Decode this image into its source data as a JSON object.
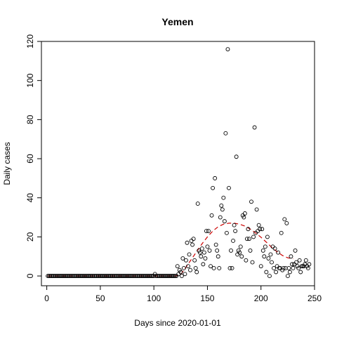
{
  "chart_data": {
    "type": "scatter",
    "title": "Yemen",
    "xlabel": "Days since 2020-01-01",
    "ylabel": "Daily cases",
    "xlim": [
      -5,
      250
    ],
    "ylim": [
      -5,
      120
    ],
    "x_ticks": [
      0,
      50,
      100,
      150,
      200,
      250
    ],
    "y_ticks": [
      0,
      20,
      40,
      60,
      80,
      100,
      120
    ],
    "grid": false,
    "point_color": "#000000",
    "trend_color": "#cc0000",
    "points": [
      [
        1,
        0
      ],
      [
        2,
        0
      ],
      [
        3,
        0
      ],
      [
        4,
        0
      ],
      [
        5,
        0
      ],
      [
        6,
        0
      ],
      [
        7,
        0
      ],
      [
        8,
        0
      ],
      [
        9,
        0
      ],
      [
        10,
        0
      ],
      [
        11,
        0
      ],
      [
        12,
        0
      ],
      [
        13,
        0
      ],
      [
        14,
        0
      ],
      [
        15,
        0
      ],
      [
        16,
        0
      ],
      [
        17,
        0
      ],
      [
        18,
        0
      ],
      [
        19,
        0
      ],
      [
        20,
        0
      ],
      [
        21,
        0
      ],
      [
        22,
        0
      ],
      [
        23,
        0
      ],
      [
        24,
        0
      ],
      [
        25,
        0
      ],
      [
        26,
        0
      ],
      [
        27,
        0
      ],
      [
        28,
        0
      ],
      [
        29,
        0
      ],
      [
        30,
        0
      ],
      [
        31,
        0
      ],
      [
        32,
        0
      ],
      [
        33,
        0
      ],
      [
        34,
        0
      ],
      [
        35,
        0
      ],
      [
        36,
        0
      ],
      [
        37,
        0
      ],
      [
        38,
        0
      ],
      [
        39,
        0
      ],
      [
        40,
        0
      ],
      [
        41,
        0
      ],
      [
        42,
        0
      ],
      [
        43,
        0
      ],
      [
        44,
        0
      ],
      [
        45,
        0
      ],
      [
        46,
        0
      ],
      [
        47,
        0
      ],
      [
        48,
        0
      ],
      [
        49,
        0
      ],
      [
        50,
        0
      ],
      [
        51,
        0
      ],
      [
        52,
        0
      ],
      [
        53,
        0
      ],
      [
        54,
        0
      ],
      [
        55,
        0
      ],
      [
        56,
        0
      ],
      [
        57,
        0
      ],
      [
        58,
        0
      ],
      [
        59,
        0
      ],
      [
        60,
        0
      ],
      [
        61,
        0
      ],
      [
        62,
        0
      ],
      [
        63,
        0
      ],
      [
        64,
        0
      ],
      [
        65,
        0
      ],
      [
        66,
        0
      ],
      [
        67,
        0
      ],
      [
        68,
        0
      ],
      [
        69,
        0
      ],
      [
        70,
        0
      ],
      [
        71,
        0
      ],
      [
        72,
        0
      ],
      [
        73,
        0
      ],
      [
        74,
        0
      ],
      [
        75,
        0
      ],
      [
        76,
        0
      ],
      [
        77,
        0
      ],
      [
        78,
        0
      ],
      [
        79,
        0
      ],
      [
        80,
        0
      ],
      [
        81,
        0
      ],
      [
        82,
        0
      ],
      [
        83,
        0
      ],
      [
        84,
        0
      ],
      [
        85,
        0
      ],
      [
        86,
        0
      ],
      [
        87,
        0
      ],
      [
        88,
        0
      ],
      [
        89,
        0
      ],
      [
        90,
        0
      ],
      [
        91,
        0
      ],
      [
        92,
        0
      ],
      [
        93,
        0
      ],
      [
        94,
        0
      ],
      [
        95,
        0
      ],
      [
        96,
        0
      ],
      [
        97,
        0
      ],
      [
        98,
        0
      ],
      [
        99,
        0
      ],
      [
        100,
        0
      ],
      [
        101,
        1
      ],
      [
        102,
        0
      ],
      [
        103,
        0
      ],
      [
        104,
        0
      ],
      [
        105,
        0
      ],
      [
        106,
        0
      ],
      [
        107,
        0
      ],
      [
        108,
        0
      ],
      [
        109,
        0
      ],
      [
        110,
        0
      ],
      [
        111,
        0
      ],
      [
        112,
        0
      ],
      [
        113,
        0
      ],
      [
        114,
        0
      ],
      [
        115,
        0
      ],
      [
        116,
        0
      ],
      [
        117,
        0
      ],
      [
        118,
        0
      ],
      [
        119,
        0
      ],
      [
        120,
        0
      ],
      [
        121,
        0
      ],
      [
        122,
        5
      ],
      [
        123,
        1
      ],
      [
        124,
        3
      ],
      [
        125,
        2
      ],
      [
        126,
        0
      ],
      [
        127,
        9
      ],
      [
        128,
        4
      ],
      [
        129,
        1
      ],
      [
        130,
        8
      ],
      [
        131,
        17
      ],
      [
        132,
        5
      ],
      [
        133,
        11
      ],
      [
        134,
        3
      ],
      [
        135,
        18
      ],
      [
        136,
        16
      ],
      [
        137,
        19
      ],
      [
        138,
        8
      ],
      [
        139,
        4
      ],
      [
        140,
        2
      ],
      [
        141,
        37
      ],
      [
        142,
        13
      ],
      [
        143,
        12
      ],
      [
        144,
        10
      ],
      [
        145,
        14
      ],
      [
        146,
        6
      ],
      [
        147,
        12
      ],
      [
        148,
        9
      ],
      [
        149,
        23
      ],
      [
        150,
        15
      ],
      [
        151,
        23
      ],
      [
        152,
        13
      ],
      [
        153,
        5
      ],
      [
        154,
        31
      ],
      [
        155,
        45
      ],
      [
        156,
        4
      ],
      [
        157,
        50
      ],
      [
        158,
        16
      ],
      [
        159,
        13
      ],
      [
        160,
        10
      ],
      [
        161,
        4
      ],
      [
        162,
        30
      ],
      [
        163,
        36
      ],
      [
        164,
        34
      ],
      [
        165,
        40
      ],
      [
        166,
        28
      ],
      [
        167,
        73
      ],
      [
        168,
        22
      ],
      [
        169,
        116
      ],
      [
        170,
        45
      ],
      [
        171,
        4
      ],
      [
        172,
        13
      ],
      [
        173,
        4
      ],
      [
        174,
        18
      ],
      [
        175,
        26
      ],
      [
        176,
        23
      ],
      [
        177,
        61
      ],
      [
        178,
        11
      ],
      [
        179,
        13
      ],
      [
        180,
        12
      ],
      [
        181,
        15
      ],
      [
        182,
        10
      ],
      [
        183,
        31
      ],
      [
        184,
        30
      ],
      [
        185,
        32
      ],
      [
        186,
        8
      ],
      [
        187,
        19
      ],
      [
        188,
        24
      ],
      [
        189,
        19
      ],
      [
        190,
        13
      ],
      [
        191,
        38
      ],
      [
        192,
        7
      ],
      [
        193,
        20
      ],
      [
        194,
        76
      ],
      [
        195,
        22
      ],
      [
        196,
        34
      ],
      [
        197,
        23
      ],
      [
        198,
        26
      ],
      [
        199,
        24
      ],
      [
        200,
        5
      ],
      [
        201,
        24
      ],
      [
        202,
        13
      ],
      [
        203,
        10
      ],
      [
        204,
        15
      ],
      [
        205,
        2
      ],
      [
        206,
        20
      ],
      [
        207,
        9
      ],
      [
        208,
        0
      ],
      [
        209,
        11
      ],
      [
        210,
        7
      ],
      [
        211,
        15
      ],
      [
        212,
        4
      ],
      [
        213,
        14
      ],
      [
        214,
        2
      ],
      [
        215,
        5
      ],
      [
        216,
        12
      ],
      [
        217,
        4
      ],
      [
        218,
        4
      ],
      [
        219,
        22
      ],
      [
        220,
        3
      ],
      [
        221,
        4
      ],
      [
        222,
        29
      ],
      [
        223,
        4
      ],
      [
        224,
        27
      ],
      [
        225,
        0
      ],
      [
        226,
        4
      ],
      [
        227,
        2
      ],
      [
        228,
        10
      ],
      [
        229,
        6
      ],
      [
        230,
        4
      ],
      [
        231,
        6
      ],
      [
        232,
        13
      ],
      [
        233,
        7
      ],
      [
        234,
        5
      ],
      [
        235,
        4
      ],
      [
        236,
        8
      ],
      [
        237,
        2
      ],
      [
        238,
        5
      ],
      [
        239,
        5
      ],
      [
        240,
        5
      ],
      [
        241,
        6
      ],
      [
        242,
        8
      ],
      [
        243,
        5
      ],
      [
        244,
        4
      ],
      [
        245,
        6
      ]
    ],
    "trend": [
      [
        1,
        0
      ],
      [
        30,
        0
      ],
      [
        60,
        0
      ],
      [
        90,
        0
      ],
      [
        120,
        0
      ],
      [
        125,
        0.6
      ],
      [
        130,
        4.5
      ],
      [
        135,
        8.5
      ],
      [
        140,
        12.5
      ],
      [
        145,
        16.5
      ],
      [
        150,
        20
      ],
      [
        155,
        23
      ],
      [
        160,
        25.2
      ],
      [
        165,
        26.5
      ],
      [
        170,
        27
      ],
      [
        175,
        27
      ],
      [
        180,
        26.5
      ],
      [
        185,
        25.5
      ],
      [
        190,
        24
      ],
      [
        195,
        22
      ],
      [
        200,
        19.8
      ],
      [
        205,
        17.3
      ],
      [
        210,
        14.7
      ],
      [
        215,
        12.4
      ],
      [
        220,
        10.5
      ],
      [
        225,
        9.3
      ],
      [
        230,
        8.8
      ]
    ]
  }
}
